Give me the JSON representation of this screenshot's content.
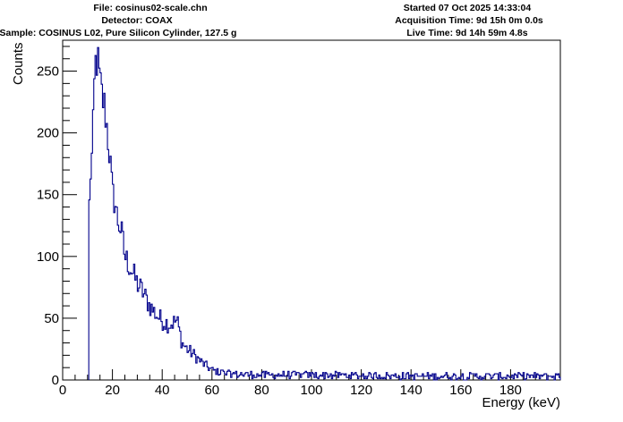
{
  "header": {
    "file": "File: cosinus02-scale.chn",
    "detector": "Detector: COAX",
    "sample": "Sample: COSINUS L02, Pure Silicon Cylinder, 127.5 g",
    "started": "Started 07 Oct 2025 14:33:04",
    "acquisition": "Acquisition Time: 9d 15h 0m 0.0s",
    "live": "Live Time: 9d 14h 59m 4.8s"
  },
  "chart_data": {
    "type": "histogram",
    "title": "",
    "xlabel": "Energy (keV)",
    "ylabel": "Counts",
    "xlim": [
      0,
      200
    ],
    "ylim": [
      0,
      275
    ],
    "x_ticks": [
      0,
      20,
      40,
      60,
      80,
      100,
      120,
      140,
      160,
      180
    ],
    "y_ticks": [
      0,
      50,
      100,
      150,
      200,
      250
    ],
    "bin_width_kev": 0.5,
    "threshold_kev": 10.5,
    "series": [
      {
        "name": "spectrum",
        "color": "#00008b",
        "description_points": [
          {
            "x": 10.5,
            "y": 120
          },
          {
            "x": 11,
            "y": 163
          },
          {
            "x": 12,
            "y": 185
          },
          {
            "x": 13,
            "y": 255
          },
          {
            "x": 14,
            "y": 260
          },
          {
            "x": 15,
            "y": 240
          },
          {
            "x": 16,
            "y": 228
          },
          {
            "x": 17,
            "y": 220
          },
          {
            "x": 18,
            "y": 200
          },
          {
            "x": 19,
            "y": 180
          },
          {
            "x": 20,
            "y": 150
          },
          {
            "x": 21,
            "y": 145
          },
          {
            "x": 22,
            "y": 130
          },
          {
            "x": 23,
            "y": 125
          },
          {
            "x": 24,
            "y": 115
          },
          {
            "x": 25,
            "y": 100
          },
          {
            "x": 27,
            "y": 92
          },
          {
            "x": 30,
            "y": 78
          },
          {
            "x": 32,
            "y": 72
          },
          {
            "x": 35,
            "y": 60
          },
          {
            "x": 38,
            "y": 52
          },
          {
            "x": 40,
            "y": 48
          },
          {
            "x": 43,
            "y": 45
          },
          {
            "x": 46,
            "y": 48
          },
          {
            "x": 48,
            "y": 30
          },
          {
            "x": 50,
            "y": 25
          },
          {
            "x": 53,
            "y": 20
          },
          {
            "x": 56,
            "y": 14
          },
          {
            "x": 60,
            "y": 8
          },
          {
            "x": 65,
            "y": 5
          },
          {
            "x": 80,
            "y": 4
          },
          {
            "x": 100,
            "y": 4
          },
          {
            "x": 140,
            "y": 3
          },
          {
            "x": 200,
            "y": 3
          }
        ]
      }
    ]
  }
}
